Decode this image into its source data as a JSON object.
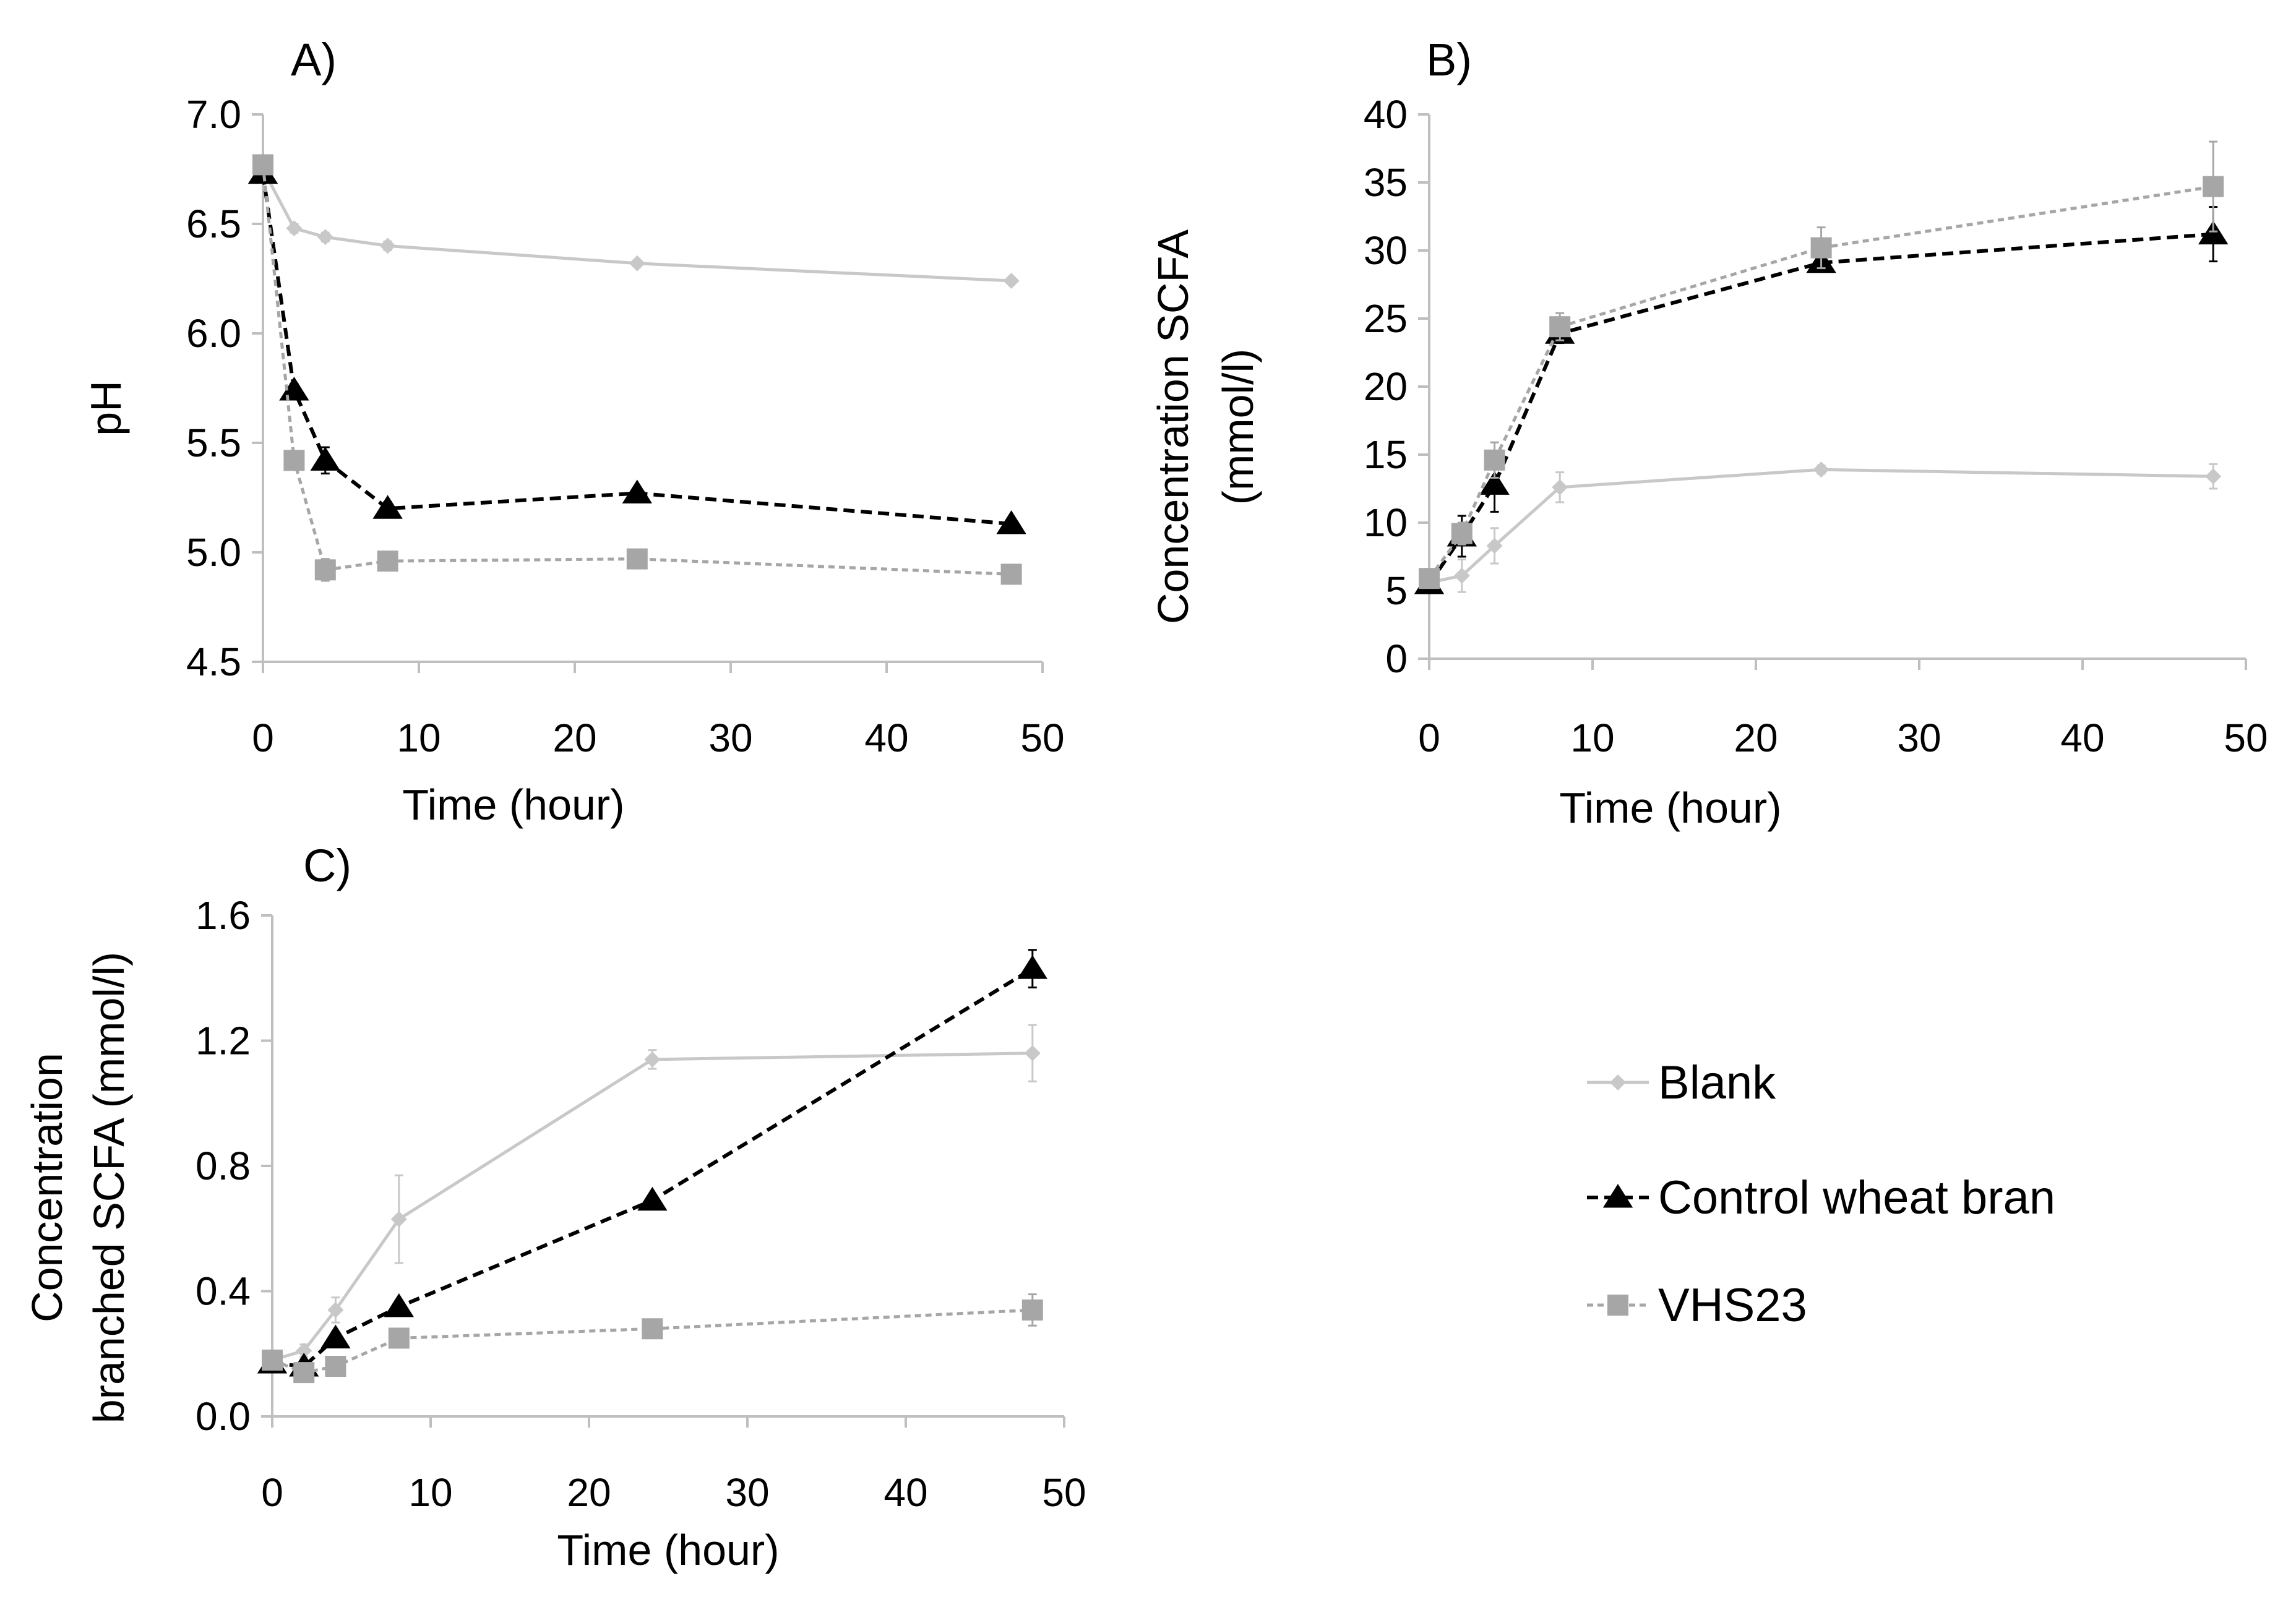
{
  "colors": {
    "blank": "#c8c8c8",
    "control": "#000000",
    "vhs": "#a6a6a6",
    "axis": "#bfbfbf"
  },
  "legend": {
    "items": [
      {
        "label": "Blank",
        "key": "blank"
      },
      {
        "label": "Control wheat bran",
        "key": "control"
      },
      {
        "label": "VHS23",
        "key": "vhs"
      }
    ]
  },
  "chart_data": [
    {
      "id": "A",
      "type": "line",
      "panel_label": "A)",
      "xlabel": "Time (hour)",
      "ylabel": "pH",
      "xlim": [
        0,
        50
      ],
      "ylim": [
        4.5,
        7.0
      ],
      "xticks": [
        0,
        10,
        20,
        30,
        40,
        50
      ],
      "xtick_labels": [
        "0",
        "10",
        "20",
        "30",
        "40",
        "50"
      ],
      "yticks": [
        4.5,
        5.0,
        5.5,
        6.0,
        6.5,
        7.0
      ],
      "ytick_labels": [
        "4.5",
        "5.0",
        "5.5",
        "6.0",
        "6.5",
        "7.0"
      ],
      "x": [
        0,
        2,
        4,
        8,
        24,
        48
      ],
      "series": [
        {
          "name": "Blank",
          "key": "blank",
          "values": [
            6.75,
            6.48,
            6.44,
            6.4,
            6.32,
            6.24
          ],
          "errors": [
            0.02,
            0.02,
            0.02,
            0.02,
            0.01,
            0.01
          ]
        },
        {
          "name": "Control wheat bran",
          "key": "control",
          "values": [
            6.73,
            5.74,
            5.42,
            5.2,
            5.27,
            5.13
          ],
          "errors": [
            0.02,
            0.03,
            0.06,
            0.03,
            0.02,
            0.02
          ]
        },
        {
          "name": "VHS23",
          "key": "vhs",
          "values": [
            6.77,
            5.42,
            4.92,
            4.96,
            4.97,
            4.9
          ],
          "errors": [
            0.02,
            0.02,
            0.05,
            0.02,
            0.02,
            0.02
          ]
        }
      ]
    },
    {
      "id": "B",
      "type": "line",
      "panel_label": "B)",
      "xlabel": "Time (hour)",
      "ylabel": "Concentration SCFA",
      "ylabel2": "(mmol/l)",
      "xlim": [
        0,
        50
      ],
      "ylim": [
        0,
        40
      ],
      "xticks": [
        0,
        10,
        20,
        30,
        40,
        50
      ],
      "xtick_labels": [
        "0",
        "10",
        "20",
        "30",
        "40",
        "50"
      ],
      "yticks": [
        0,
        5,
        10,
        15,
        20,
        25,
        30,
        35,
        40
      ],
      "ytick_labels": [
        "0",
        "5",
        "10",
        "15",
        "20",
        "25",
        "30",
        "35",
        "40"
      ],
      "x": [
        0,
        2,
        4,
        8,
        24,
        48
      ],
      "series": [
        {
          "name": "Blank",
          "key": "blank",
          "values": [
            5.6,
            6.1,
            8.3,
            12.6,
            13.9,
            13.4
          ],
          "errors": [
            0.3,
            1.2,
            1.3,
            1.1,
            0.3,
            0.9
          ]
        },
        {
          "name": "Control wheat bran",
          "key": "control",
          "values": [
            5.5,
            9.0,
            12.8,
            23.9,
            29.1,
            31.2
          ],
          "errors": [
            0.3,
            1.5,
            2.0,
            0.7,
            0.6,
            2.0
          ]
        },
        {
          "name": "VHS23",
          "key": "vhs",
          "values": [
            5.9,
            9.2,
            14.6,
            24.4,
            30.2,
            34.7
          ],
          "errors": [
            0.3,
            0.8,
            1.3,
            1.0,
            1.5,
            3.3
          ]
        }
      ]
    },
    {
      "id": "C",
      "type": "line",
      "panel_label": "C)",
      "xlabel": "Time (hour)",
      "ylabel": "Concentration",
      "ylabel2": "branched SCFA (mmol/l)",
      "xlim": [
        0,
        50
      ],
      "ylim": [
        0.0,
        1.6
      ],
      "xticks": [
        0,
        10,
        20,
        30,
        40,
        50
      ],
      "xtick_labels": [
        "0",
        "10",
        "20",
        "30",
        "40",
        "50"
      ],
      "yticks": [
        0.0,
        0.4,
        0.8,
        1.2,
        1.6
      ],
      "ytick_labels": [
        "0.0",
        "0.4",
        "0.8",
        "1.2",
        "1.6"
      ],
      "x": [
        0,
        2,
        4,
        8,
        24,
        48
      ],
      "series": [
        {
          "name": "Blank",
          "key": "blank",
          "values": [
            0.18,
            0.21,
            0.34,
            0.63,
            1.14,
            1.16
          ],
          "errors": [
            0.01,
            0.02,
            0.04,
            0.14,
            0.03,
            0.09
          ]
        },
        {
          "name": "Control wheat bran",
          "key": "control",
          "values": [
            0.17,
            0.16,
            0.25,
            0.35,
            0.69,
            1.43
          ],
          "errors": [
            0.01,
            0.01,
            0.02,
            0.02,
            0.01,
            0.06
          ]
        },
        {
          "name": "VHS23",
          "key": "vhs",
          "values": [
            0.18,
            0.14,
            0.16,
            0.25,
            0.28,
            0.34
          ],
          "errors": [
            0.01,
            0.01,
            0.01,
            0.02,
            0.02,
            0.05
          ]
        }
      ]
    }
  ]
}
